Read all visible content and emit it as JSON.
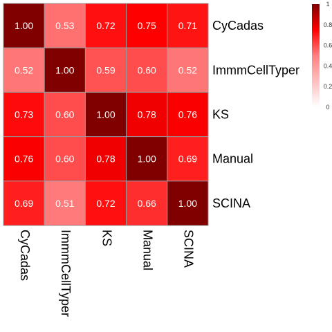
{
  "chart_data": {
    "type": "heatmap",
    "rows": [
      "CyCadas",
      "ImmmCellTyper",
      "KS",
      "Manual",
      "SCINA"
    ],
    "columns": [
      "CyCadas",
      "ImmmCellTyper",
      "KS",
      "Manual",
      "SCINA"
    ],
    "values": [
      [
        1.0,
        0.53,
        0.72,
        0.75,
        0.71
      ],
      [
        0.52,
        1.0,
        0.59,
        0.6,
        0.52
      ],
      [
        0.73,
        0.6,
        1.0,
        0.78,
        0.76
      ],
      [
        0.76,
        0.6,
        0.78,
        1.0,
        0.69
      ],
      [
        0.69,
        0.51,
        0.72,
        0.66,
        1.0
      ]
    ],
    "value_labels": [
      [
        "1.00",
        "0.53",
        "0.72",
        "0.75",
        "0.71"
      ],
      [
        "0.52",
        "1.00",
        "0.59",
        "0.60",
        "0.52"
      ],
      [
        "0.73",
        "0.60",
        "1.00",
        "0.78",
        "0.76"
      ],
      [
        "0.76",
        "0.60",
        "0.78",
        "1.00",
        "0.69"
      ],
      [
        "0.69",
        "0.51",
        "0.72",
        "0.66",
        "1.00"
      ]
    ],
    "colorbar": {
      "range": [
        0,
        1
      ],
      "ticks": [
        "0",
        "0.2",
        "0.4",
        "0.6",
        "0.8",
        "1"
      ],
      "colors": [
        "#ffffff",
        "#ff8080",
        "#ff0000",
        "#800000"
      ]
    },
    "legend_placement": "top-right",
    "grid": true,
    "cell_border_color": "#999999",
    "cell_text_color": "#ffffff"
  }
}
